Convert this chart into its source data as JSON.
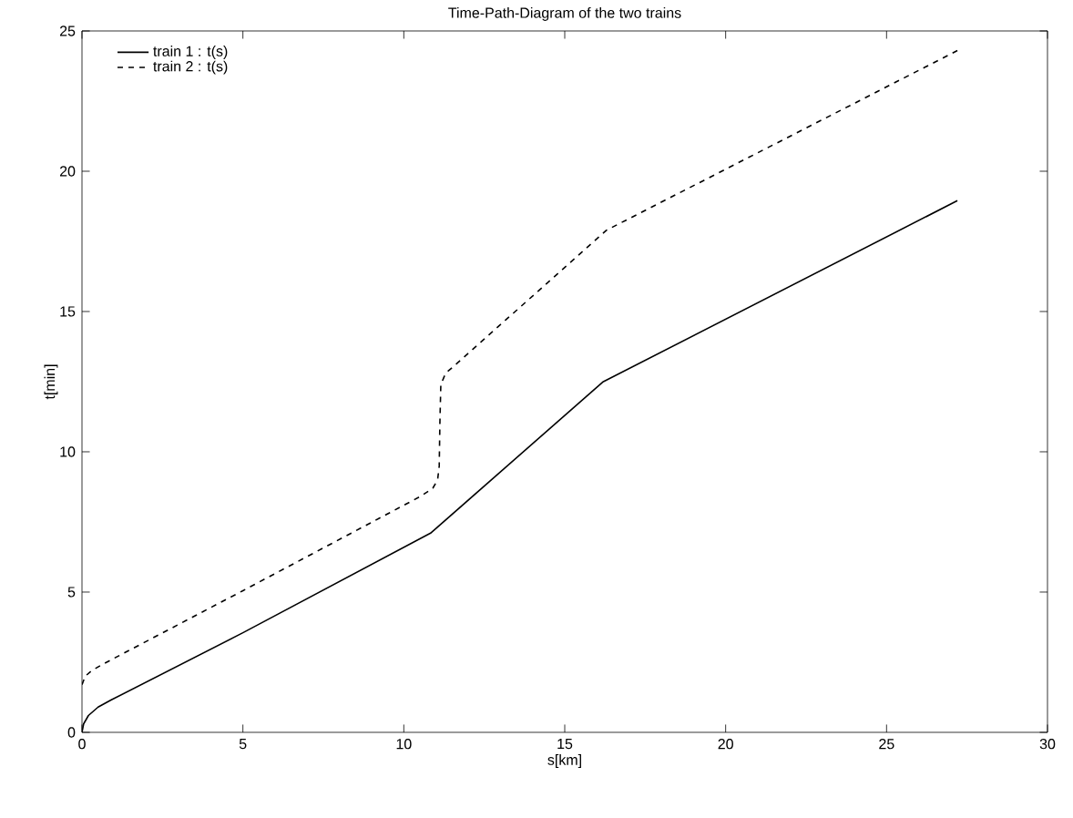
{
  "chart_data": {
    "type": "line",
    "title": "Time-Path-Diagram of the two trains",
    "xlabel": "s[km]",
    "ylabel": "t[min]",
    "xlim": [
      0,
      30
    ],
    "ylim": [
      0,
      25
    ],
    "xticks": [
      0,
      5,
      10,
      15,
      20,
      25,
      30
    ],
    "yticks": [
      0,
      5,
      10,
      15,
      20,
      25
    ],
    "grid": false,
    "legend": "top left",
    "marker": "none",
    "series": [
      {
        "name": "train 1 : t(s)",
        "color": "#000000",
        "line_style": "solid",
        "x": [
          0,
          0.05,
          0.2,
          0.5,
          0.9,
          5,
          10.83,
          16.2,
          27.2
        ],
        "values": [
          0,
          0.3,
          0.6,
          0.9,
          1.15,
          3.55,
          7.1,
          12.5,
          18.95
        ]
      },
      {
        "name": "train 2 : t(s)",
        "color": "#000000",
        "line_style": "dashed",
        "x": [
          0,
          0.1,
          0.3,
          0.6,
          5,
          10.5,
          10.9,
          11.05,
          11.1,
          11.12,
          11.15,
          11.3,
          11.6,
          16.3,
          27.2
        ],
        "values": [
          1.7,
          2.0,
          2.2,
          2.4,
          5.05,
          8.4,
          8.7,
          9.0,
          9.5,
          11,
          12.4,
          12.8,
          13.1,
          17.9,
          24.3
        ]
      }
    ]
  }
}
